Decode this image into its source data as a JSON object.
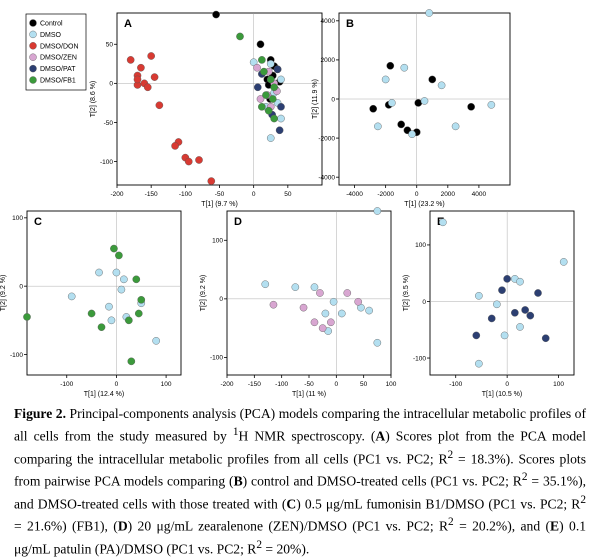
{
  "colors": {
    "control": "#000000",
    "dmso": "#b3dff0",
    "don": "#d83a32",
    "zen": "#d8a6d1",
    "pat": "#2c3f72",
    "fb1": "#3b9a3b"
  },
  "legend": {
    "entries": [
      {
        "label": "Control",
        "key": "control"
      },
      {
        "label": "DMSO",
        "key": "dmso"
      },
      {
        "label": "DMSO/DON",
        "key": "don"
      },
      {
        "label": "DMSO/ZEN",
        "key": "zen"
      },
      {
        "label": "DMSO/PAT",
        "key": "pat"
      },
      {
        "label": "DMSO/FB1",
        "key": "fb1"
      }
    ]
  },
  "chart_data": [
    {
      "panel": "A",
      "type": "scatter",
      "xlabel": "T[1] (9.7 %)",
      "ylabel": "T[2] (8.6 %)",
      "xlim": [
        -200,
        100
      ],
      "ylim": [
        -130,
        90
      ],
      "xticks": [
        -200,
        -150,
        -100,
        -50,
        0,
        50
      ],
      "yticks": [
        -100,
        -50,
        0,
        50
      ],
      "series": [
        {
          "name": "Control",
          "key": "control",
          "points": [
            [
              -55,
              88
            ],
            [
              10,
              50
            ],
            [
              25,
              30
            ],
            [
              30,
              22
            ],
            [
              35,
              18
            ],
            [
              28,
              10
            ],
            [
              20,
              5
            ],
            [
              22,
              -2
            ],
            [
              32,
              -8
            ],
            [
              24,
              -20
            ],
            [
              38,
              2
            ]
          ]
        },
        {
          "name": "DMSO",
          "key": "dmso",
          "points": [
            [
              0,
              27
            ],
            [
              25,
              25
            ],
            [
              40,
              5
            ],
            [
              30,
              -12
            ],
            [
              35,
              -25
            ],
            [
              18,
              -30
            ],
            [
              40,
              -45
            ],
            [
              25,
              -70
            ]
          ]
        },
        {
          "name": "DMSO/DON",
          "key": "don",
          "points": [
            [
              -150,
              35
            ],
            [
              -165,
              20
            ],
            [
              -180,
              30
            ],
            [
              -145,
              8
            ],
            [
              -170,
              10
            ],
            [
              -160,
              0
            ],
            [
              -155,
              -5
            ],
            [
              -138,
              -28
            ],
            [
              -170,
              -2
            ],
            [
              -110,
              -75
            ],
            [
              -115,
              -80
            ],
            [
              -100,
              -95
            ],
            [
              -95,
              -100
            ],
            [
              -80,
              -98
            ],
            [
              -62,
              -125
            ],
            [
              -170,
              5
            ]
          ]
        },
        {
          "name": "DMSO/ZEN",
          "key": "zen",
          "points": [
            [
              5,
              20
            ],
            [
              22,
              15
            ],
            [
              30,
              0
            ],
            [
              20,
              -15
            ],
            [
              10,
              -20
            ],
            [
              25,
              -30
            ],
            [
              34,
              -10
            ]
          ]
        },
        {
          "name": "DMSO/PAT",
          "key": "pat",
          "points": [
            [
              12,
              12
            ],
            [
              35,
              18
            ],
            [
              6,
              -5
            ],
            [
              27,
              -40
            ],
            [
              40,
              -30
            ],
            [
              38,
              -60
            ]
          ]
        },
        {
          "name": "DMSO/FB1",
          "key": "fb1",
          "points": [
            [
              -20,
              60
            ],
            [
              12,
              30
            ],
            [
              15,
              15
            ],
            [
              25,
              5
            ],
            [
              30,
              -5
            ],
            [
              18,
              -15
            ],
            [
              28,
              -20
            ],
            [
              22,
              -35
            ],
            [
              30,
              -45
            ],
            [
              12,
              -30
            ]
          ]
        }
      ]
    },
    {
      "panel": "B",
      "type": "scatter",
      "xlabel": "T[1] (23.2 %)",
      "ylabel": "T[2] (11.9 %)",
      "xlim": [
        -5000,
        6000
      ],
      "ylim": [
        -4400,
        4400
      ],
      "xticks": [
        -4000,
        -2000,
        0,
        2000,
        4000
      ],
      "yticks": [
        -4000,
        -2000,
        0,
        2000,
        4000
      ],
      "series": [
        {
          "name": "Control",
          "key": "control",
          "points": [
            [
              -1700,
              1700
            ],
            [
              1000,
              1000
            ],
            [
              -2800,
              -500
            ],
            [
              -1800,
              -300
            ],
            [
              -1000,
              -1300
            ],
            [
              -600,
              -1600
            ],
            [
              0,
              -1700
            ],
            [
              100,
              -200
            ],
            [
              3500,
              -400
            ]
          ]
        },
        {
          "name": "DMSO",
          "key": "dmso",
          "points": [
            [
              800,
              4400
            ],
            [
              -800,
              1600
            ],
            [
              1600,
              700
            ],
            [
              -2000,
              1000
            ],
            [
              -1600,
              -200
            ],
            [
              -2500,
              -1400
            ],
            [
              -300,
              -1800
            ],
            [
              500,
              -100
            ],
            [
              2500,
              -1400
            ],
            [
              4800,
              -300
            ]
          ]
        }
      ]
    },
    {
      "panel": "C",
      "type": "scatter",
      "xlabel": "T[1] (12.4 %)",
      "ylabel": "T[2] (9.2 %)",
      "xlim": [
        -180,
        130
      ],
      "ylim": [
        -130,
        110
      ],
      "xticks": [
        -100,
        0,
        100
      ],
      "yticks": [
        -100,
        0,
        100
      ],
      "series": [
        {
          "name": "DMSO",
          "key": "dmso",
          "points": [
            [
              -90,
              -15
            ],
            [
              -35,
              20
            ],
            [
              0,
              20
            ],
            [
              15,
              10
            ],
            [
              10,
              -5
            ],
            [
              -15,
              -30
            ],
            [
              -10,
              -50
            ],
            [
              20,
              -45
            ],
            [
              50,
              -25
            ],
            [
              80,
              -80
            ]
          ]
        },
        {
          "name": "DMSO/FB1",
          "key": "fb1",
          "points": [
            [
              -180,
              -45
            ],
            [
              -5,
              55
            ],
            [
              5,
              45
            ],
            [
              40,
              10
            ],
            [
              -30,
              -60
            ],
            [
              -50,
              -40
            ],
            [
              25,
              -50
            ],
            [
              45,
              -40
            ],
            [
              50,
              -20
            ],
            [
              30,
              -110
            ]
          ]
        }
      ]
    },
    {
      "panel": "D",
      "type": "scatter",
      "xlabel": "T[1] (11 %)",
      "ylabel": "T[2] (9.2 %)",
      "xlim": [
        -200,
        100
      ],
      "ylim": [
        -130,
        150
      ],
      "xticks": [
        -200,
        -150,
        -100,
        -50,
        0,
        50,
        100
      ],
      "yticks": [
        -100,
        0,
        100
      ],
      "series": [
        {
          "name": "DMSO",
          "key": "dmso",
          "points": [
            [
              75,
              150
            ],
            [
              -130,
              25
            ],
            [
              -75,
              20
            ],
            [
              -40,
              20
            ],
            [
              -5,
              -5
            ],
            [
              -20,
              -25
            ],
            [
              10,
              -25
            ],
            [
              60,
              -20
            ],
            [
              -15,
              -55
            ],
            [
              75,
              -75
            ],
            [
              45,
              -15
            ]
          ]
        },
        {
          "name": "DMSO/ZEN",
          "key": "zen",
          "points": [
            [
              -115,
              -10
            ],
            [
              -60,
              -15
            ],
            [
              -30,
              10
            ],
            [
              -40,
              -40
            ],
            [
              -25,
              -50
            ],
            [
              -10,
              -40
            ],
            [
              20,
              10
            ],
            [
              40,
              -5
            ]
          ]
        }
      ]
    },
    {
      "panel": "E",
      "type": "scatter",
      "xlabel": "T[1] (10.5 %)",
      "ylabel": "T[2] (9.5 %)",
      "xlim": [
        -150,
        130
      ],
      "ylim": [
        -130,
        160
      ],
      "xticks": [
        -100,
        0,
        100
      ],
      "yticks": [
        -100,
        0,
        100
      ],
      "series": [
        {
          "name": "DMSO",
          "key": "dmso",
          "points": [
            [
              -125,
              140
            ],
            [
              110,
              70
            ],
            [
              15,
              40
            ],
            [
              25,
              35
            ],
            [
              -20,
              -5
            ],
            [
              -55,
              10
            ],
            [
              -5,
              -60
            ],
            [
              25,
              -45
            ],
            [
              -55,
              -110
            ]
          ]
        },
        {
          "name": "DMSO/PAT",
          "key": "pat",
          "points": [
            [
              0,
              40
            ],
            [
              -10,
              20
            ],
            [
              60,
              15
            ],
            [
              35,
              -15
            ],
            [
              45,
              -25
            ],
            [
              -30,
              -30
            ],
            [
              -60,
              -60
            ],
            [
              15,
              -20
            ],
            [
              75,
              -65
            ]
          ]
        }
      ]
    }
  ],
  "caption": {
    "figure_label": "Figure 2.",
    "part1": " Principal-components analysis (PCA) models comparing the intracellular metabolic profiles of all cells from the study measured by ",
    "sup1": "1",
    "part2": "H NMR spectroscopy. (",
    "labelA": "A",
    "part3": ") Scores plot from the PCA model comparing the intracellular metabolic profiles from all cells (PC1 vs. PC2; R",
    "sup2": "2",
    "part4": " = 18.3%). Scores plots from pairwise PCA models comparing (",
    "labelB": "B",
    "part5": ") control and DMSO-treated cells (PC1 vs. PC2; R",
    "sup3": "2",
    "part6": " = 35.1%), and DMSO-treated cells with those treated with (",
    "labelC": "C",
    "part7": ") 0.5 μg/mL fumonisin B1/DMSO (PC1 vs. PC2; R",
    "sup4": "2",
    "part8": " = 21.6%) (FB1), (",
    "labelD": "D",
    "part9": ") 20 μg/mL zearalenone (ZEN)/DMSO (PC1 vs. PC2; R",
    "sup5": "2",
    "part10": " = 20.2%), and (",
    "labelE": "E",
    "part11": ") 0.1 μg/mL patulin (PA)/DMSO (PC1 vs. PC2; R",
    "sup6": "2",
    "part12": " = 20%)."
  }
}
